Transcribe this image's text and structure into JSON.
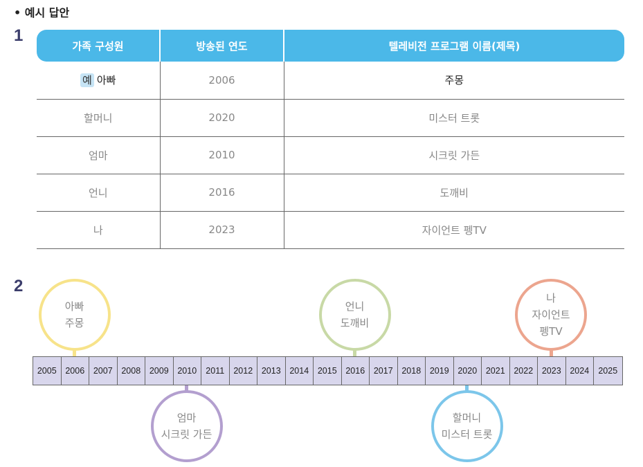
{
  "heading": "• 예시 답안",
  "section1": "1",
  "section2": "2",
  "table": {
    "headers": [
      "가족 구성원",
      "방송된 연도",
      "텔레비전 프로그램 이름(제목)"
    ],
    "example_badge": "예",
    "rows": [
      {
        "member": "아빠",
        "year": "2006",
        "program": "주몽"
      },
      {
        "member": "할머니",
        "year": "2020",
        "program": "미스터 트롯"
      },
      {
        "member": "엄마",
        "year": "2010",
        "program": "시크릿 가든"
      },
      {
        "member": "언니",
        "year": "2016",
        "program": "도깨비"
      },
      {
        "member": "나",
        "year": "2023",
        "program": "자이언트 펭TV"
      }
    ]
  },
  "timeline": {
    "years": [
      "2005",
      "2006",
      "2007",
      "2008",
      "2009",
      "2010",
      "2011",
      "2012",
      "2013",
      "2014",
      "2015",
      "2016",
      "2017",
      "2018",
      "2019",
      "2020",
      "2021",
      "2022",
      "2023",
      "2024",
      "2025"
    ],
    "events": [
      {
        "year": "2006",
        "lines": [
          "아빠",
          "주몽"
        ],
        "side": "top",
        "color": "#f7e38a"
      },
      {
        "year": "2010",
        "lines": [
          "엄마",
          "시크릿 가든"
        ],
        "side": "bottom",
        "color": "#b39fcf"
      },
      {
        "year": "2016",
        "lines": [
          "언니",
          "도깨비"
        ],
        "side": "top",
        "color": "#c8d9a6"
      },
      {
        "year": "2020",
        "lines": [
          "할머니",
          "미스터 트롯"
        ],
        "side": "bottom",
        "color": "#7cc6ea"
      },
      {
        "year": "2023",
        "lines": [
          "나",
          "자이언트",
          "펭TV"
        ],
        "side": "top",
        "color": "#eca58e"
      }
    ]
  }
}
